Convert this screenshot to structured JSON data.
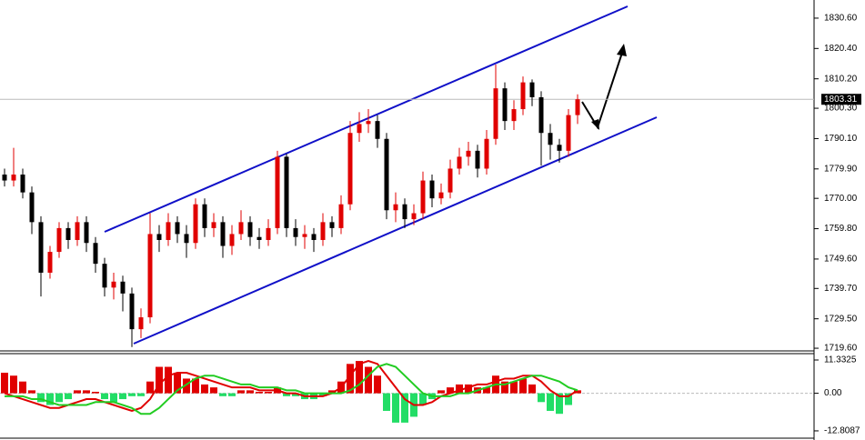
{
  "chart_data": {
    "type": "candlestick",
    "open": [
      1778,
      1776,
      1778,
      1772,
      1762,
      1745,
      1752,
      1760,
      1756,
      1762,
      1755,
      1748,
      1740,
      1742,
      1738,
      1726,
      1730,
      1758,
      1756,
      1762,
      1758,
      1755,
      1768,
      1760,
      1762,
      1754,
      1758,
      1762,
      1757,
      1756,
      1760,
      1784,
      1760,
      1757,
      1758,
      1756,
      1762,
      1760,
      1768,
      1792,
      1795,
      1796,
      1790,
      1766,
      1768,
      1763,
      1765,
      1776,
      1770,
      1772,
      1780,
      1784,
      1786,
      1780,
      1790,
      1807,
      1796,
      1800,
      1809,
      1804,
      1792,
      1788,
      1786,
      1798
    ],
    "high": [
      1780,
      1787,
      1780,
      1774,
      1764,
      1754,
      1762,
      1762,
      1764,
      1764,
      1757,
      1750,
      1745,
      1744,
      1740,
      1733,
      1765,
      1761,
      1765,
      1764,
      1761,
      1770,
      1770,
      1765,
      1764,
      1761,
      1766,
      1764,
      1760,
      1763,
      1786,
      1785,
      1763,
      1761,
      1760,
      1765,
      1764,
      1771,
      1796,
      1799,
      1800,
      1798,
      1792,
      1772,
      1770,
      1768,
      1779,
      1778,
      1775,
      1783,
      1787,
      1789,
      1788,
      1793,
      1815,
      1809,
      1803,
      1811,
      1810,
      1806,
      1795,
      1790,
      1800,
      1805
    ],
    "low": [
      1774,
      1774,
      1770,
      1758,
      1737,
      1743,
      1750,
      1753,
      1754,
      1752,
      1745,
      1737,
      1736,
      1732,
      1720,
      1723,
      1728,
      1752,
      1754,
      1755,
      1750,
      1753,
      1757,
      1757,
      1750,
      1751,
      1756,
      1754,
      1753,
      1754,
      1758,
      1757,
      1754,
      1753,
      1752,
      1754,
      1757,
      1758,
      1766,
      1789,
      1792,
      1787,
      1763,
      1762,
      1760,
      1761,
      1763,
      1767,
      1768,
      1770,
      1778,
      1781,
      1777,
      1778,
      1788,
      1793,
      1793,
      1798,
      1801,
      1781,
      1783,
      1782,
      1784,
      1795
    ],
    "close": [
      1776,
      1778,
      1772,
      1762,
      1745,
      1752,
      1760,
      1756,
      1762,
      1755,
      1748,
      1740,
      1742,
      1738,
      1726,
      1730,
      1758,
      1756,
      1762,
      1758,
      1755,
      1768,
      1760,
      1762,
      1754,
      1758,
      1762,
      1757,
      1756,
      1760,
      1784,
      1760,
      1757,
      1758,
      1756,
      1762,
      1760,
      1768,
      1792,
      1795,
      1796,
      1790,
      1766,
      1768,
      1763,
      1765,
      1776,
      1770,
      1772,
      1780,
      1784,
      1786,
      1780,
      1790,
      1807,
      1796,
      1800,
      1809,
      1804,
      1792,
      1788,
      1786,
      1798,
      1803.31
    ],
    "up_color": "#e00000",
    "down_color": "#000000",
    "ylim": [
      1718.7,
      1836.7
    ],
    "yticks": [
      {
        "value": 1830.6,
        "label": "1830.60"
      },
      {
        "value": 1820.4,
        "label": "1820.40"
      },
      {
        "value": 1810.2,
        "label": "1810.20"
      },
      {
        "value": 1800.3,
        "label": "1800.30"
      },
      {
        "value": 1790.1,
        "label": "1790.10"
      },
      {
        "value": 1779.9,
        "label": "1779.90"
      },
      {
        "value": 1770,
        "label": "1770.00"
      },
      {
        "value": 1759.8,
        "label": "1759.80"
      },
      {
        "value": 1749.6,
        "label": "1749.60"
      },
      {
        "value": 1739.7,
        "label": "1739.70"
      },
      {
        "value": 1729.5,
        "label": "1729.50"
      },
      {
        "value": 1719.6,
        "label": "1719.60"
      }
    ],
    "y2lim": [
      -15.3,
      13.5
    ],
    "y2ticks": [
      11.3325,
      {
        "value": 0,
        "label": "0.00"
      },
      -12.8087
    ],
    "histogram": {
      "pos_color": "#e00000",
      "neg_color": "#22dd66",
      "axis": "y2",
      "values": [
        7,
        6,
        4,
        1,
        -3,
        -4,
        -3,
        -2,
        1,
        1,
        0.5,
        -2,
        -3,
        -2,
        -1,
        -1,
        4,
        9,
        9,
        7,
        5,
        5,
        3,
        2,
        -1,
        -1,
        1,
        1,
        0.5,
        0.5,
        2,
        -1,
        -1,
        -2,
        -2,
        -1,
        1,
        4,
        10,
        11,
        9,
        6,
        -6,
        -10,
        -10,
        -8,
        -4,
        -2,
        1,
        2,
        3,
        3,
        2,
        2,
        6,
        4,
        4,
        5,
        3,
        -3,
        -6,
        -7,
        -4,
        1
      ]
    },
    "series": [
      {
        "color": "#e00000",
        "axis": "y2",
        "values": [
          0,
          -1,
          -2,
          -3,
          -4,
          -5,
          -5,
          -4,
          -3,
          -2,
          -2,
          -3,
          -4,
          -5,
          -6,
          -5,
          -2,
          3,
          6,
          7,
          7,
          6,
          5,
          4,
          3,
          2,
          2,
          2,
          1,
          1,
          1,
          0,
          0,
          -1,
          -1,
          -1,
          0,
          2,
          6,
          10,
          11,
          10,
          6,
          2,
          -2,
          -4,
          -4,
          -3,
          -1,
          0,
          1,
          2,
          3,
          3,
          4,
          5,
          5,
          6,
          6,
          4,
          1,
          -1,
          -1,
          1
        ]
      },
      {
        "color": "#22cc22",
        "axis": "y2",
        "values": [
          -1,
          -1,
          -1,
          -2,
          -2,
          -3,
          -4,
          -4,
          -4,
          -4,
          -3,
          -3,
          -3,
          -4,
          -5,
          -7,
          -7,
          -5,
          -2,
          1,
          3,
          5,
          6,
          6,
          5,
          4,
          3,
          3,
          2,
          2,
          2,
          1,
          1,
          0,
          0,
          0,
          0,
          0,
          1,
          3,
          6,
          9,
          10,
          9,
          6,
          3,
          0,
          -1,
          -1,
          -1,
          0,
          0,
          1,
          2,
          3,
          3,
          4,
          5,
          6,
          6,
          5,
          4,
          2,
          1
        ]
      }
    ]
  }
}
